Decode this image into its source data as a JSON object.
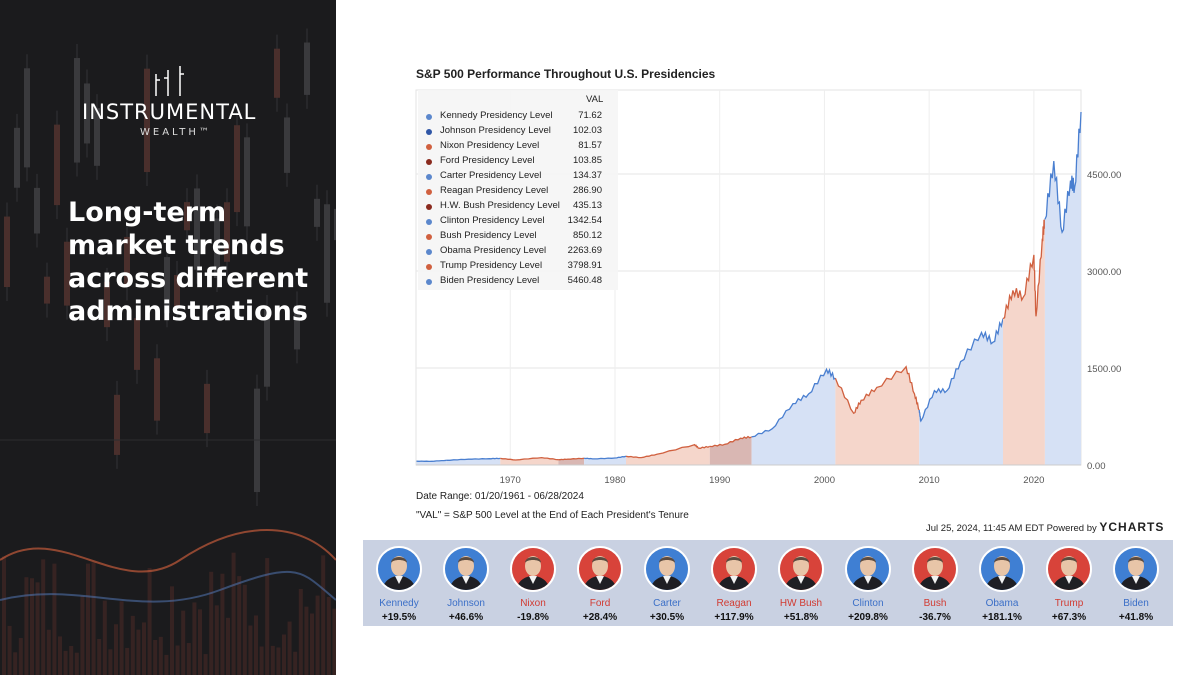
{
  "brand": {
    "name": "INSTRUMENTAL",
    "sub": "WEALTH™"
  },
  "headline": "Long-term\nmarket trends\nacross different\nadministrations",
  "chart": {
    "title": "S&P 500 Performance Throughout U.S. Presidencies",
    "date_range": "Date Range: 01/20/1961 - 06/28/2024",
    "val_note": "\"VAL\" = S&P 500 Level at the End of Each President's Tenure",
    "footer": "Jul 25, 2024, 11:45 AM EDT Powered by",
    "footer_brand": "YCHARTS",
    "legend_header": "VAL"
  },
  "colors": {
    "blue_line": "#4a7fd0",
    "red_line": "#d0603f",
    "blue_fill": "#d6e1f5",
    "red_fill": "#f5d6cb",
    "dark_red_fill": "#d9b7b3"
  },
  "chart_data": {
    "type": "area",
    "title": "S&P 500 Performance Throughout U.S. Presidencies",
    "xlabel": "",
    "ylabel": "",
    "xlim": [
      1961,
      2024.5
    ],
    "ylim": [
      0,
      5800
    ],
    "x_ticks": [
      "1970",
      "1980",
      "1990",
      "2000",
      "2010",
      "2020"
    ],
    "y_ticks": [
      "0.00",
      "1500.00",
      "3000.00",
      "4500.00"
    ],
    "grid": true,
    "legend_position": "top-left",
    "presidencies": [
      {
        "label": "Kennedy Presidency Level",
        "value": "71.62",
        "start": 1961.05,
        "end": 1963.9,
        "color": "#5b87cc"
      },
      {
        "label": "Johnson Presidency Level",
        "value": "102.03",
        "start": 1963.9,
        "end": 1969.05,
        "color": "#2f56a6"
      },
      {
        "label": "Nixon Presidency Level",
        "value": "81.57",
        "start": 1969.05,
        "end": 1974.6,
        "color": "#d0603f"
      },
      {
        "label": "Ford Presidency Level",
        "value": "103.85",
        "start": 1974.6,
        "end": 1977.05,
        "color": "#8a2a1e"
      },
      {
        "label": "Carter Presidency Level",
        "value": "134.37",
        "start": 1977.05,
        "end": 1981.05,
        "color": "#5b87cc"
      },
      {
        "label": "Reagan Presidency Level",
        "value": "286.90",
        "start": 1981.05,
        "end": 1989.05,
        "color": "#d0603f"
      },
      {
        "label": "H.W. Bush Presidency Level",
        "value": "435.13",
        "start": 1989.05,
        "end": 1993.05,
        "color": "#8a2a1e"
      },
      {
        "label": "Clinton Presidency Level",
        "value": "1342.54",
        "start": 1993.05,
        "end": 2001.05,
        "color": "#5b87cc"
      },
      {
        "label": "Bush Presidency Level",
        "value": "850.12",
        "start": 2001.05,
        "end": 2009.05,
        "color": "#d0603f"
      },
      {
        "label": "Obama Presidency Level",
        "value": "2263.69",
        "start": 2009.05,
        "end": 2017.05,
        "color": "#5b87cc"
      },
      {
        "label": "Trump Presidency Level",
        "value": "3798.91",
        "start": 2017.05,
        "end": 2021.05,
        "color": "#d0603f"
      },
      {
        "label": "Biden Presidency Level",
        "value": "5460.48",
        "start": 2021.05,
        "end": 2024.5,
        "color": "#5b87cc"
      }
    ],
    "series_points": [
      [
        1961.05,
        59
      ],
      [
        1962.5,
        57
      ],
      [
        1963.9,
        72
      ],
      [
        1966,
        90
      ],
      [
        1968,
        98
      ],
      [
        1969.05,
        102
      ],
      [
        1970.5,
        78
      ],
      [
        1973,
        115
      ],
      [
        1974.6,
        82
      ],
      [
        1975.5,
        90
      ],
      [
        1977.05,
        104
      ],
      [
        1978,
        95
      ],
      [
        1980,
        108
      ],
      [
        1981.05,
        134
      ],
      [
        1982.5,
        115
      ],
      [
        1984,
        165
      ],
      [
        1987.6,
        315
      ],
      [
        1988,
        260
      ],
      [
        1989.05,
        287
      ],
      [
        1990.5,
        320
      ],
      [
        1992,
        415
      ],
      [
        1993.05,
        435
      ],
      [
        1995,
        560
      ],
      [
        1997,
        950
      ],
      [
        1998.5,
        1100
      ],
      [
        2000.2,
        1480
      ],
      [
        2001.05,
        1342
      ],
      [
        2002.8,
        800
      ],
      [
        2003.5,
        1000
      ],
      [
        2005,
        1200
      ],
      [
        2007.8,
        1520
      ],
      [
        2008.6,
        1100
      ],
      [
        2009.05,
        850
      ],
      [
        2009.2,
        680
      ],
      [
        2010.5,
        1150
      ],
      [
        2011.7,
        1150
      ],
      [
        2013,
        1600
      ],
      [
        2015,
        2050
      ],
      [
        2016.1,
        1900
      ],
      [
        2017.05,
        2264
      ],
      [
        2018,
        2700
      ],
      [
        2019,
        2600
      ],
      [
        2020,
        3250
      ],
      [
        2020.2,
        2300
      ],
      [
        2020.8,
        3500
      ],
      [
        2021.05,
        3799
      ],
      [
        2021.9,
        4700
      ],
      [
        2022.7,
        3600
      ],
      [
        2023.5,
        4400
      ],
      [
        2023.9,
        4300
      ],
      [
        2024.5,
        5460
      ]
    ]
  },
  "presidents": [
    {
      "name": "Kennedy",
      "pct": "+19.5%",
      "party": "dem"
    },
    {
      "name": "Johnson",
      "pct": "+46.6%",
      "party": "dem"
    },
    {
      "name": "Nixon",
      "pct": "-19.8%",
      "party": "rep"
    },
    {
      "name": "Ford",
      "pct": "+28.4%",
      "party": "rep"
    },
    {
      "name": "Carter",
      "pct": "+30.5%",
      "party": "dem"
    },
    {
      "name": "Reagan",
      "pct": "+117.9%",
      "party": "rep"
    },
    {
      "name": "HW Bush",
      "pct": "+51.8%",
      "party": "rep"
    },
    {
      "name": "Clinton",
      "pct": "+209.8%",
      "party": "dem"
    },
    {
      "name": "Bush",
      "pct": "-36.7%",
      "party": "rep"
    },
    {
      "name": "Obama",
      "pct": "+181.1%",
      "party": "dem"
    },
    {
      "name": "Trump",
      "pct": "+67.3%",
      "party": "rep"
    },
    {
      "name": "Biden",
      "pct": "+41.8%",
      "party": "dem"
    }
  ],
  "party_colors": {
    "dem": "#3b6fc7",
    "rep": "#d13b32",
    "dem_bg": "#3f7fd3",
    "rep_bg": "#d8433a"
  }
}
